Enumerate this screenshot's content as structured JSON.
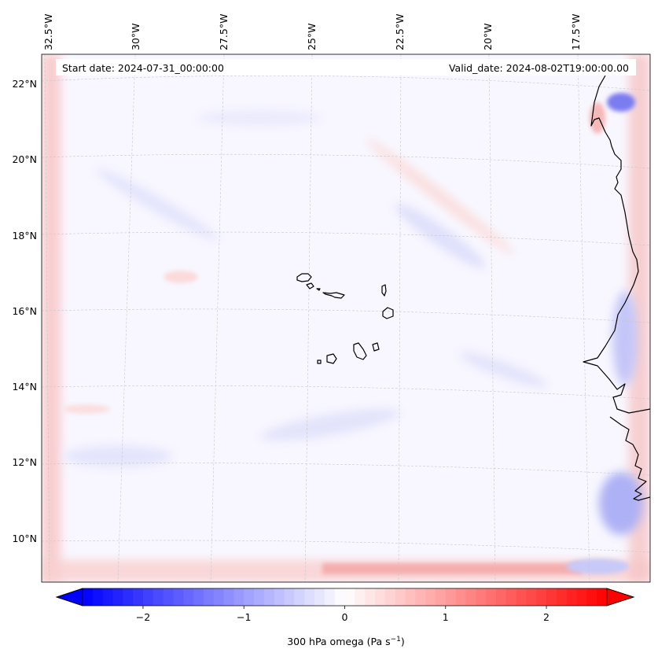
{
  "map": {
    "start_date_label": "Start date: 2024-07-31_00:00:00",
    "valid_date_label": "Valid_date: 2024-08-02T19:00:00.00",
    "lon_labels": [
      "32.5°W",
      "30°W",
      "27.5°W",
      "25°W",
      "22.5°W",
      "20°W",
      "17.5°W"
    ],
    "lat_labels": [
      "22°N",
      "20°N",
      "18°N",
      "16°N",
      "14°N",
      "12°N",
      "10°N"
    ],
    "islands": [
      "Santo Antão",
      "São Vicente",
      "Santa Luzia",
      "São Nicolau",
      "Sal",
      "Boa Vista",
      "Maio",
      "Santiago",
      "Fogo",
      "Brava"
    ],
    "coastline_color": "#000000",
    "gridline_color": "#c8c8c8"
  },
  "colorbar": {
    "variable_label": "300 hPa omega (Pa s",
    "unit_exponent": "−1",
    "unit_close": ")",
    "tick_labels": [
      "−2",
      "−1",
      "0",
      "1",
      "2"
    ],
    "tick_values": [
      -2,
      -1,
      0,
      1,
      2
    ],
    "min": -2.6,
    "max": 2.6,
    "colormap": "bwr",
    "low_color": "#0000ff",
    "mid_color": "#ffffff",
    "high_color": "#ff0000"
  }
}
